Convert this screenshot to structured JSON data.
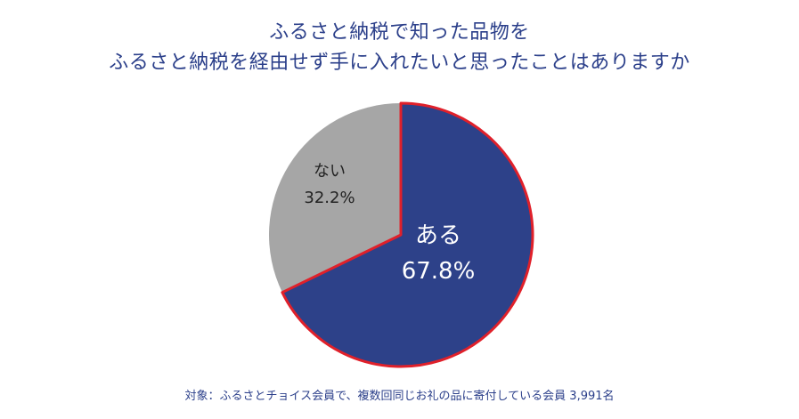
{
  "chart_data": {
    "type": "pie",
    "title_lines": [
      "ふるさと納税で知った品物を",
      "ふるさと納税を経由せず手に入れたいと思ったことはありますか"
    ],
    "slices": [
      {
        "label": "ある",
        "value": 67.8,
        "value_label": "67.8%",
        "color": "#2d4189",
        "text_color": "#ffffff"
      },
      {
        "label": "ない",
        "value": 32.2,
        "value_label": "32.2%",
        "color": "#a6a6a6",
        "text_color": "#222222"
      }
    ],
    "border_color": "#e0202a",
    "start": "12 o'clock",
    "direction": "clockwise"
  },
  "footnote": "対象：ふるさとチョイス会員で、複数回同じお礼の品に寄付している会員 3,991名"
}
